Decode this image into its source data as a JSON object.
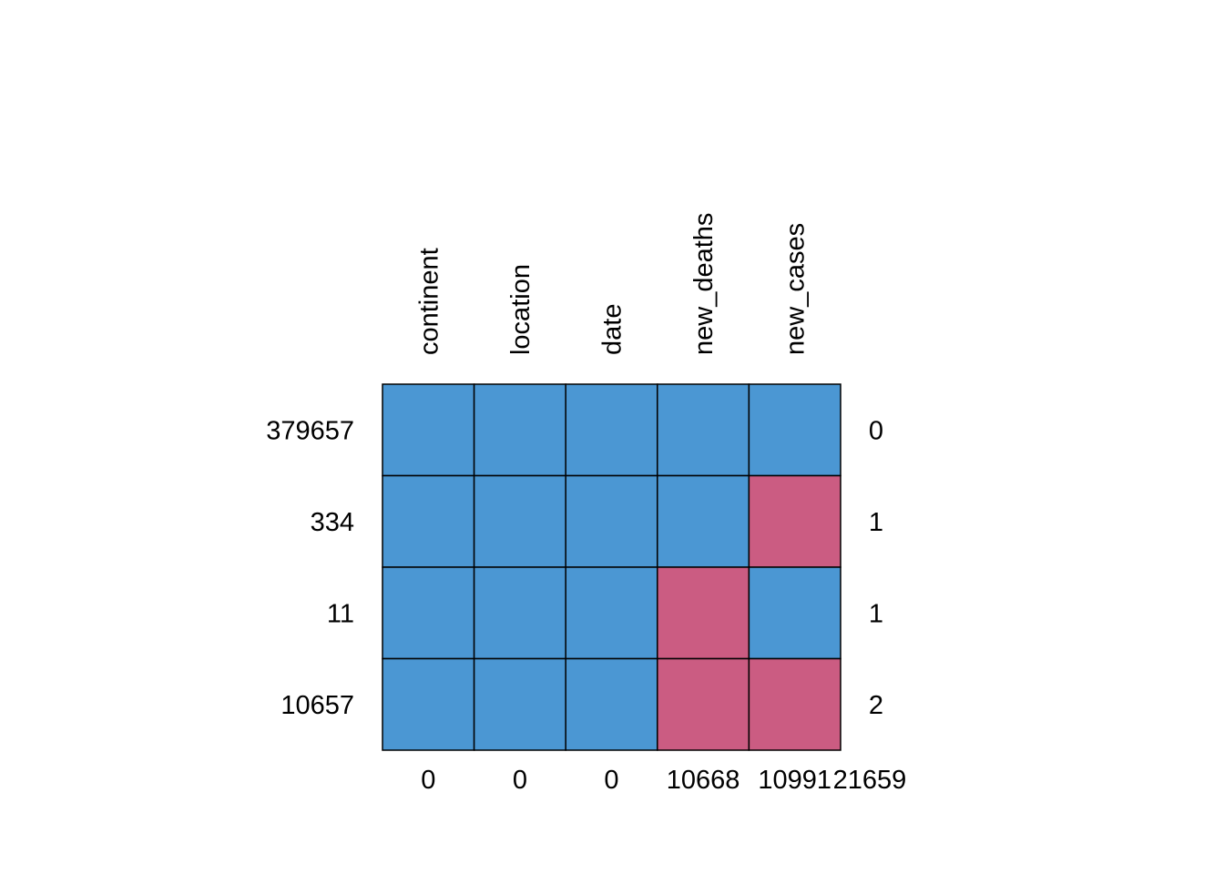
{
  "chart_data": {
    "type": "heatmap",
    "title": "",
    "columns": [
      "continent",
      "location",
      "date",
      "new_deaths",
      "new_cases"
    ],
    "row_counts": [
      "379657",
      "334",
      "11",
      "10657"
    ],
    "row_missing": [
      "0",
      "1",
      "1",
      "2"
    ],
    "column_missing": [
      "0",
      "0",
      "0",
      "10668",
      "10991"
    ],
    "total_missing": "21659",
    "pattern": [
      [
        1,
        1,
        1,
        1,
        1
      ],
      [
        1,
        1,
        1,
        1,
        0
      ],
      [
        1,
        1,
        1,
        0,
        1
      ],
      [
        1,
        1,
        1,
        0,
        0
      ]
    ],
    "legend": "none",
    "colors": {
      "observed": "#4B97D3",
      "missing": "#CB5C82",
      "border": "#000000"
    }
  }
}
